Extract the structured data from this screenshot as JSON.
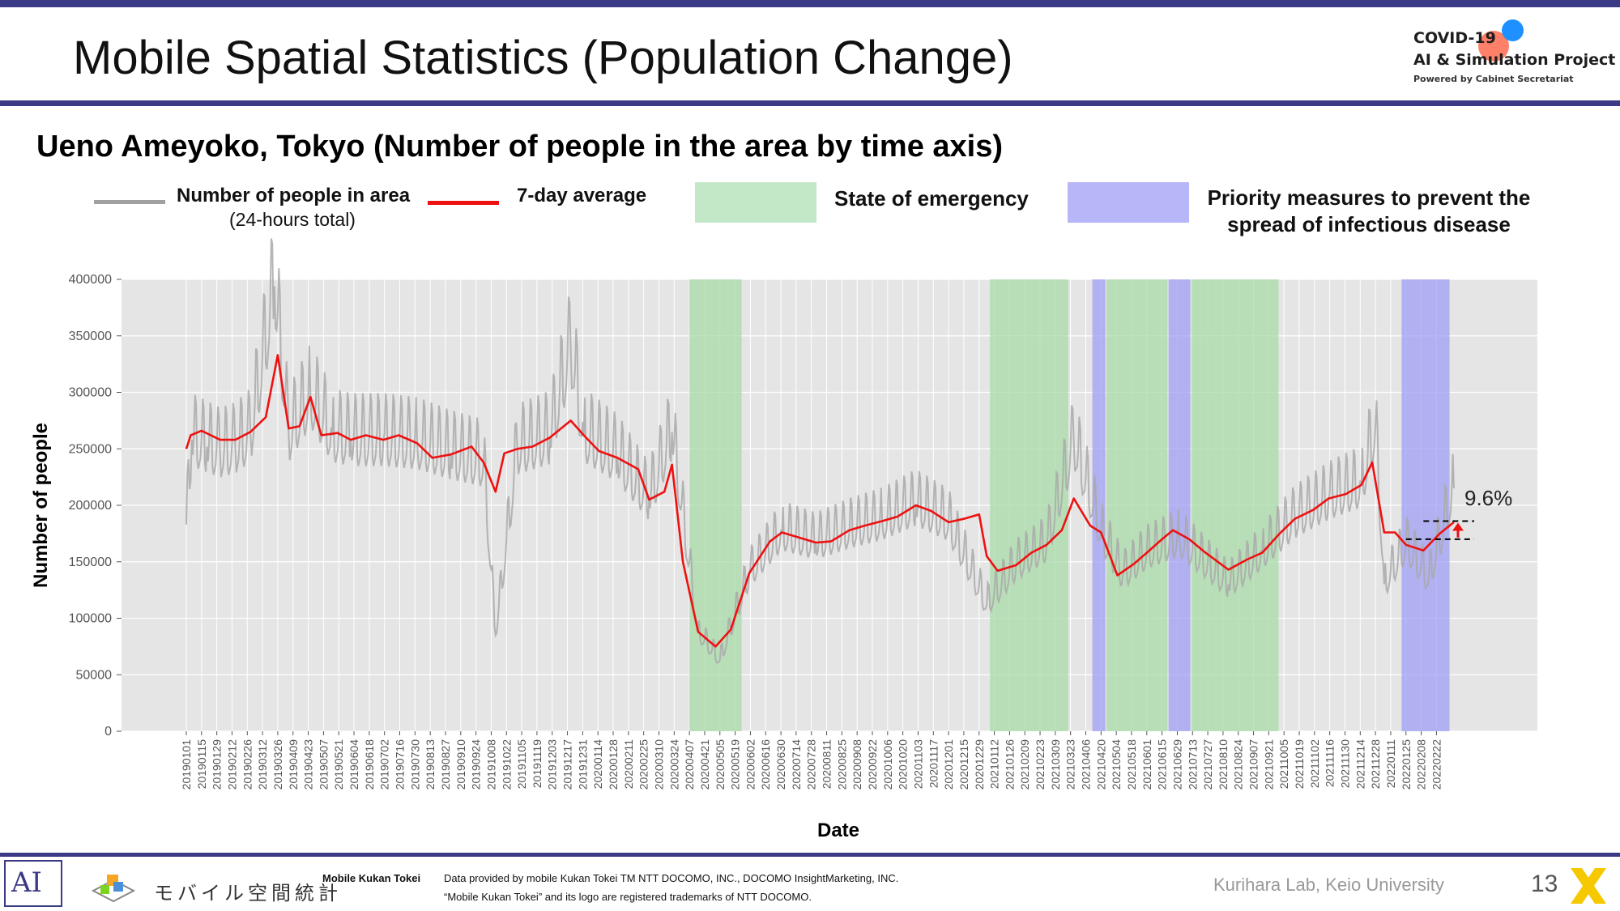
{
  "header": {
    "title": "Mobile Spatial Statistics (Population Change)",
    "brand_line1": "COVID-19",
    "brand_line2": "AI & Simulation Project",
    "brand_line3": "Powered by Cabinet Secretariat"
  },
  "colors": {
    "accent_rule": "#3b3a86",
    "raw_line": "#a9a9a9",
    "avg_line": "#ee1111",
    "emergency": "#a8dba8",
    "priority": "#9f9ff5",
    "plot_bg": "#e5e5e5"
  },
  "legend": {
    "raw_label": "Number of people in area",
    "raw_sublabel": "(24-hours total)",
    "avg_label": "7-day average",
    "emergency_label": "State of emergency",
    "priority_label": "Priority measures to prevent the spread of infectious disease"
  },
  "footer": {
    "mk_name": "Mobile Kukan Tokei",
    "mk_japanese": "モバイル空間統計",
    "credit_line1": "Data provided by mobile Kukan Tokei TM NTT DOCOMO, INC., DOCOMO InsightMarketing, INC.",
    "credit_line2": "“Mobile Kukan Tokei” and its logo are registered trademarks of NTT DOCOMO.",
    "lab": "Kurihara Lab, Keio University",
    "page_number": "13",
    "lab_logo_text": "AI"
  },
  "chart_data": {
    "type": "line",
    "title": "Ueno Ameyoko, Tokyo (Number of people in the area by time axis)",
    "xlabel": "Date",
    "ylabel": "Number of people",
    "ylim": [
      0,
      400000
    ],
    "yticks": [
      0,
      50000,
      100000,
      150000,
      200000,
      250000,
      300000,
      350000,
      400000
    ],
    "x_start": "20190101",
    "x_end": "20220316",
    "xticks": [
      "20190101",
      "20190115",
      "20190129",
      "20190212",
      "20190226",
      "20190312",
      "20190326",
      "20190409",
      "20190423",
      "20190507",
      "20190521",
      "20190604",
      "20190618",
      "20190702",
      "20190716",
      "20190730",
      "20190813",
      "20190827",
      "20190910",
      "20190924",
      "20191008",
      "20191022",
      "20191105",
      "20191119",
      "20191203",
      "20191217",
      "20191231",
      "20200114",
      "20200128",
      "20200211",
      "20200225",
      "20200310",
      "20200324",
      "20200407",
      "20200421",
      "20200505",
      "20200519",
      "20200602",
      "20200616",
      "20200630",
      "20200714",
      "20200728",
      "20200811",
      "20200825",
      "20200908",
      "20200922",
      "20201006",
      "20201020",
      "20201103",
      "20201117",
      "20201201",
      "20201215",
      "20201229",
      "20210112",
      "20210126",
      "20210209",
      "20210223",
      "20210309",
      "20210323",
      "20210406",
      "20210420",
      "20210504",
      "20210518",
      "20210601",
      "20210615",
      "20210629",
      "20210713",
      "20210727",
      "20210810",
      "20210824",
      "20210907",
      "20210921",
      "20211005",
      "20211019",
      "20211102",
      "20211116",
      "20211130",
      "20211214",
      "20211228",
      "20220111",
      "20220125",
      "20220208",
      "20220222"
    ],
    "grid": true,
    "series": [
      {
        "name": "7-day average",
        "points": [
          [
            "20190101",
            250000
          ],
          [
            "20190105",
            262000
          ],
          [
            "20190115",
            266000
          ],
          [
            "20190201",
            258000
          ],
          [
            "20190215",
            258000
          ],
          [
            "20190301",
            265000
          ],
          [
            "20190315",
            278000
          ],
          [
            "20190326",
            333000
          ],
          [
            "20190405",
            268000
          ],
          [
            "20190415",
            270000
          ],
          [
            "20190425",
            296000
          ],
          [
            "20190505",
            262000
          ],
          [
            "20190520",
            264000
          ],
          [
            "20190601",
            258000
          ],
          [
            "20190615",
            262000
          ],
          [
            "20190701",
            258000
          ],
          [
            "20190715",
            262000
          ],
          [
            "20190801",
            255000
          ],
          [
            "20190815",
            242000
          ],
          [
            "20190901",
            245000
          ],
          [
            "20190920",
            252000
          ],
          [
            "20191001",
            238000
          ],
          [
            "20191012",
            212000
          ],
          [
            "20191020",
            246000
          ],
          [
            "20191101",
            250000
          ],
          [
            "20191115",
            252000
          ],
          [
            "20191201",
            260000
          ],
          [
            "20191220",
            275000
          ],
          [
            "20200101",
            262000
          ],
          [
            "20200115",
            248000
          ],
          [
            "20200201",
            242000
          ],
          [
            "20200220",
            232000
          ],
          [
            "20200301",
            205000
          ],
          [
            "20200315",
            212000
          ],
          [
            "20200322",
            236000
          ],
          [
            "20200401",
            150000
          ],
          [
            "20200415",
            88000
          ],
          [
            "20200501",
            75000
          ],
          [
            "20200515",
            90000
          ],
          [
            "20200601",
            140000
          ],
          [
            "20200620",
            168000
          ],
          [
            "20200701",
            176000
          ],
          [
            "20200715",
            172000
          ],
          [
            "20200801",
            167000
          ],
          [
            "20200815",
            168000
          ],
          [
            "20200901",
            178000
          ],
          [
            "20200915",
            182000
          ],
          [
            "20201001",
            186000
          ],
          [
            "20201015",
            190000
          ],
          [
            "20201101",
            200000
          ],
          [
            "20201115",
            195000
          ],
          [
            "20201201",
            185000
          ],
          [
            "20201215",
            188000
          ],
          [
            "20201229",
            192000
          ],
          [
            "20210105",
            155000
          ],
          [
            "20210115",
            142000
          ],
          [
            "20210201",
            147000
          ],
          [
            "20210215",
            158000
          ],
          [
            "20210301",
            165000
          ],
          [
            "20210315",
            178000
          ],
          [
            "20210326",
            206000
          ],
          [
            "20210410",
            182000
          ],
          [
            "20210420",
            176000
          ],
          [
            "20210505",
            138000
          ],
          [
            "20210520",
            148000
          ],
          [
            "20210601",
            158000
          ],
          [
            "20210615",
            170000
          ],
          [
            "20210625",
            178000
          ],
          [
            "20210710",
            170000
          ],
          [
            "20210725",
            158000
          ],
          [
            "20210815",
            143000
          ],
          [
            "20210901",
            152000
          ],
          [
            "20210915",
            158000
          ],
          [
            "20211001",
            175000
          ],
          [
            "20211015",
            188000
          ],
          [
            "20211101",
            196000
          ],
          [
            "20211115",
            206000
          ],
          [
            "20211201",
            210000
          ],
          [
            "20211215",
            218000
          ],
          [
            "20211225",
            238000
          ],
          [
            "20220105",
            176000
          ],
          [
            "20220115",
            176000
          ],
          [
            "20220125",
            165000
          ],
          [
            "20220210",
            160000
          ],
          [
            "20220225",
            175000
          ],
          [
            "20220310",
            185000
          ]
        ]
      },
      {
        "name": "Number of people in area",
        "points": [
          [
            "20190101",
            183000
          ],
          [
            "20190106",
            258000
          ],
          [
            "20190120",
            252000
          ],
          [
            "20190201",
            247000
          ],
          [
            "20190215",
            251000
          ],
          [
            "20190301",
            262000
          ],
          [
            "20190323",
            394000
          ],
          [
            "20190405",
            262000
          ],
          [
            "20190425",
            296000
          ],
          [
            "20190515",
            262000
          ],
          [
            "20190601",
            258000
          ],
          [
            "20190701",
            258000
          ],
          [
            "20190801",
            255000
          ],
          [
            "20190901",
            245000
          ],
          [
            "20191001",
            238000
          ],
          [
            "20191012",
            85000
          ],
          [
            "20191101",
            250000
          ],
          [
            "20191201",
            260000
          ],
          [
            "20191220",
            340000
          ],
          [
            "20200101",
            262000
          ],
          [
            "20200201",
            242000
          ],
          [
            "20200301",
            205000
          ],
          [
            "20200322",
            265000
          ],
          [
            "20200415",
            88000
          ],
          [
            "20200505",
            63000
          ],
          [
            "20200601",
            140000
          ],
          [
            "20200701",
            176000
          ],
          [
            "20200801",
            167000
          ],
          [
            "20200901",
            178000
          ],
          [
            "20201001",
            186000
          ],
          [
            "20201101",
            200000
          ],
          [
            "20201201",
            185000
          ],
          [
            "20210105",
            112000
          ],
          [
            "20210201",
            147000
          ],
          [
            "20210301",
            165000
          ],
          [
            "20210326",
            256000
          ],
          [
            "20210420",
            176000
          ],
          [
            "20210510",
            138000
          ],
          [
            "20210601",
            158000
          ],
          [
            "20210701",
            170000
          ],
          [
            "20210815",
            130000
          ],
          [
            "20210915",
            158000
          ],
          [
            "20211015",
            188000
          ],
          [
            "20211115",
            206000
          ],
          [
            "20211215",
            218000
          ],
          [
            "20211228",
            270000
          ],
          [
            "20220105",
            130000
          ],
          [
            "20220125",
            165000
          ],
          [
            "20220215",
            135000
          ],
          [
            "20220310",
            215000
          ]
        ]
      }
    ],
    "shaded_periods": [
      {
        "type": "State of emergency",
        "start": "20200407",
        "end": "20200525"
      },
      {
        "type": "State of emergency",
        "start": "20210108",
        "end": "20210321"
      },
      {
        "type": "Priority measures to prevent the spread of infectious disease",
        "start": "20210412",
        "end": "20210424"
      },
      {
        "type": "State of emergency",
        "start": "20210425",
        "end": "20210620"
      },
      {
        "type": "Priority measures to prevent the spread of infectious disease",
        "start": "20210621",
        "end": "20210711"
      },
      {
        "type": "State of emergency",
        "start": "20210712",
        "end": "20210930"
      },
      {
        "type": "Priority measures to prevent the spread of infectious disease",
        "start": "20220121",
        "end": "20220306"
      }
    ],
    "annotation": {
      "text": "9.6%",
      "from_value": 170000,
      "to_value": 186000
    }
  }
}
